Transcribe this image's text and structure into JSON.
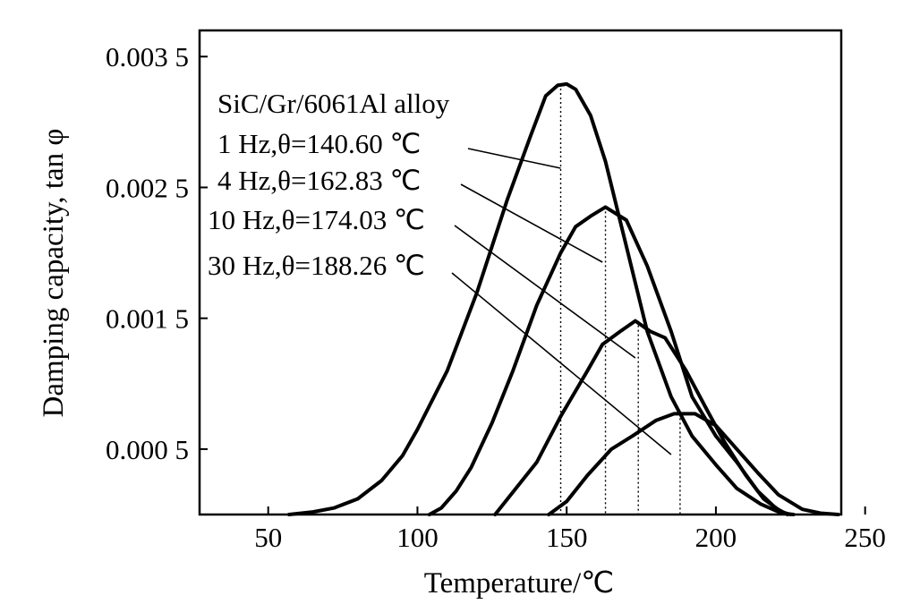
{
  "chart_data": {
    "type": "line",
    "title": "",
    "xlabel": "Temperature/℃",
    "ylabel": "Damping capacity, tan φ",
    "xlim": [
      27,
      242
    ],
    "ylim": [
      0.0,
      0.0037
    ],
    "xticks": [
      50,
      100,
      150,
      200,
      250
    ],
    "xtick_labels": [
      "50",
      "100",
      "150",
      "200",
      "250"
    ],
    "yticks": [
      0.0005,
      0.0015,
      0.0025,
      0.0035
    ],
    "ytick_labels": [
      "0.000 5",
      "0.001 5",
      "0.002 5",
      "0.003 5"
    ],
    "grid": false,
    "legend": "none",
    "annotation_title": "SiC/Gr/6061Al alloy",
    "series": [
      {
        "label": "1 Hz,θ=140.60 ℃",
        "points": [
          [
            57,
            0.0
          ],
          [
            65,
            2e-05
          ],
          [
            72,
            5e-05
          ],
          [
            80,
            0.00012
          ],
          [
            88,
            0.00026
          ],
          [
            95,
            0.00045
          ],
          [
            100,
            0.00065
          ],
          [
            110,
            0.0011
          ],
          [
            120,
            0.0017
          ],
          [
            130,
            0.0024
          ],
          [
            138,
            0.0029
          ],
          [
            143,
            0.0032
          ],
          [
            147,
            0.00328
          ],
          [
            150,
            0.00329
          ],
          [
            153,
            0.00325
          ],
          [
            158,
            0.00305
          ],
          [
            163,
            0.0027
          ],
          [
            170,
            0.00205
          ],
          [
            177,
            0.0014
          ],
          [
            185,
            0.0009
          ],
          [
            192,
            0.0006
          ],
          [
            200,
            0.00038
          ],
          [
            207,
            0.0002
          ],
          [
            215,
            8e-05
          ],
          [
            222,
            1e-05
          ],
          [
            226,
            0.0
          ]
        ],
        "dotted_x": 148
      },
      {
        "label": "4 Hz,θ=162.83 ℃",
        "points": [
          [
            104,
            0.0
          ],
          [
            108,
            5e-05
          ],
          [
            113,
            0.00018
          ],
          [
            118,
            0.00036
          ],
          [
            125,
            0.0007
          ],
          [
            132,
            0.0011
          ],
          [
            140,
            0.0016
          ],
          [
            148,
            0.002
          ],
          [
            153,
            0.0022
          ],
          [
            158,
            0.00228
          ],
          [
            163,
            0.00235
          ],
          [
            170,
            0.00225
          ],
          [
            177,
            0.0019
          ],
          [
            185,
            0.0014
          ],
          [
            192,
            0.0009
          ],
          [
            200,
            0.0006
          ],
          [
            207,
            0.0004
          ],
          [
            214,
            0.00018
          ],
          [
            220,
            5e-05
          ],
          [
            224,
            0.0
          ]
        ],
        "dotted_x": 163
      },
      {
        "label": "10 Hz,θ=174.03 ℃",
        "points": [
          [
            126,
            0.0
          ],
          [
            133,
            0.0002
          ],
          [
            140,
            0.0004
          ],
          [
            148,
            0.00075
          ],
          [
            157,
            0.0011
          ],
          [
            162,
            0.0013
          ],
          [
            168,
            0.0014
          ],
          [
            173,
            0.00148
          ],
          [
            178,
            0.0014
          ],
          [
            183,
            0.00135
          ],
          [
            190,
            0.0011
          ],
          [
            197,
            0.0008
          ],
          [
            203,
            0.00055
          ],
          [
            210,
            0.0003
          ],
          [
            216,
            0.00012
          ],
          [
            222,
            2e-05
          ],
          [
            225,
            0.0
          ]
        ],
        "dotted_x": 174
      },
      {
        "label": "30 Hz,θ=188.26 ℃",
        "points": [
          [
            144,
            0.0
          ],
          [
            150,
            0.0001
          ],
          [
            157,
            0.0003
          ],
          [
            165,
            0.0005
          ],
          [
            172,
            0.0006
          ],
          [
            180,
            0.00072
          ],
          [
            186,
            0.00077
          ],
          [
            193,
            0.00077
          ],
          [
            200,
            0.00068
          ],
          [
            207,
            0.0005
          ],
          [
            214,
            0.00032
          ],
          [
            221,
            0.00015
          ],
          [
            229,
            4e-05
          ],
          [
            235,
            1e-05
          ],
          [
            241,
            0.0
          ]
        ],
        "dotted_x": 188
      }
    ]
  }
}
